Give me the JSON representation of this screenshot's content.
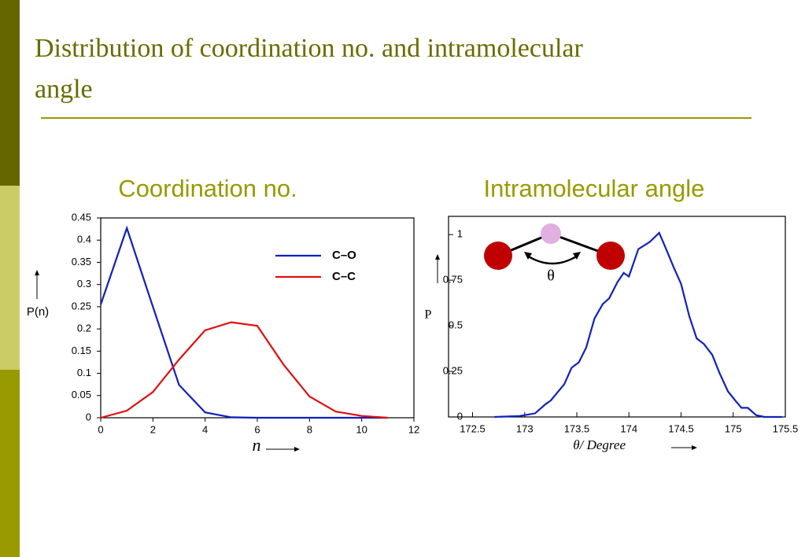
{
  "slide": {
    "title": "Distribution of coordination no. and intramolecular angle"
  },
  "chart_data": [
    {
      "type": "line",
      "title": "Coordination no.",
      "xlabel": "n",
      "ylabel": "P(n)",
      "x": [
        0,
        1,
        2,
        3,
        4,
        5,
        6,
        7,
        8,
        9,
        10,
        11
      ],
      "series": [
        {
          "name": "C–O",
          "color": "#1020c0",
          "values": [
            0.255,
            0.427,
            0.25,
            0.074,
            0.012,
            0.001,
            0,
            0,
            0,
            0,
            0,
            0
          ]
        },
        {
          "name": "C–C",
          "color": "#e01010",
          "values": [
            0,
            0.016,
            0.058,
            0.131,
            0.197,
            0.215,
            0.207,
            0.12,
            0.048,
            0.014,
            0.004,
            0
          ]
        }
      ],
      "xlim": [
        0,
        12
      ],
      "xticks": [
        0,
        2,
        4,
        6,
        8,
        10,
        12
      ],
      "ylim": [
        0,
        0.45
      ],
      "yticks": [
        0,
        0.05,
        0.1,
        0.15,
        0.2,
        0.25,
        0.3,
        0.35,
        0.4,
        0.45
      ],
      "legend": "upper right"
    },
    {
      "type": "line",
      "title": "Intramolecular angle",
      "xlabel": "θ/ Degree",
      "ylabel": "P",
      "annotation": "θ",
      "x": [
        172.71,
        172.95,
        173.1,
        173.2,
        173.25,
        173.38,
        173.45,
        173.52,
        173.59,
        173.67,
        173.75,
        173.81,
        173.89,
        173.95,
        174.0,
        174.09,
        174.2,
        174.29,
        174.35,
        174.43,
        174.5,
        174.58,
        174.65,
        174.72,
        174.8,
        174.87,
        174.95,
        175.02,
        175.08,
        175.14,
        175.22,
        175.3,
        175.47
      ],
      "series": [
        {
          "color": "#1020c0",
          "values": [
            0,
            0.005,
            0.02,
            0.07,
            0.09,
            0.18,
            0.27,
            0.3,
            0.38,
            0.54,
            0.62,
            0.65,
            0.74,
            0.79,
            0.77,
            0.92,
            0.96,
            1.01,
            0.93,
            0.82,
            0.73,
            0.55,
            0.43,
            0.4,
            0.34,
            0.24,
            0.14,
            0.09,
            0.05,
            0.05,
            0.01,
            0,
            0
          ]
        }
      ],
      "xlim": [
        172.27,
        175.5
      ],
      "xticks": [
        172.5,
        173,
        173.5,
        174,
        174.5,
        175,
        175.5
      ],
      "ylim": [
        0,
        1.1
      ],
      "yticks": [
        0,
        0.25,
        0.5,
        0.75,
        1
      ]
    }
  ]
}
